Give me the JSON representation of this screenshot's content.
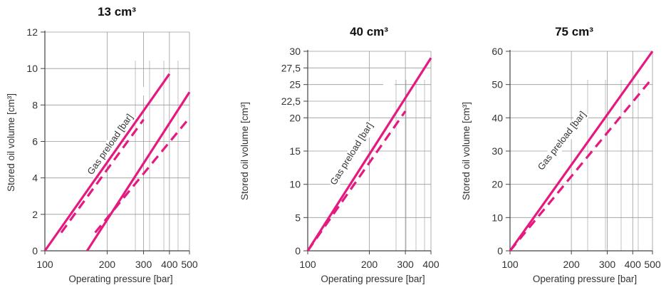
{
  "colors": {
    "series": "#e5197f",
    "grid": "#9a9a9a",
    "axis": "#444444",
    "text": "#333333"
  },
  "chart_data": [
    {
      "type": "line",
      "title": "13 cm³",
      "xlabel": "Operating pressure [bar]",
      "ylabel": "Stored oil volume [cm³]",
      "x_scale": "log",
      "xlim": [
        100,
        500
      ],
      "ylim": [
        0,
        12
      ],
      "x_tick_labels": [
        "100",
        "200",
        "300",
        "400",
        "500"
      ],
      "y_tick_labels": [
        "0",
        "2",
        "4",
        "6",
        "8",
        "10",
        "12"
      ],
      "annotation": "Gas preload [bar]",
      "series": [
        {
          "style": "solid",
          "x": [
            100,
            400
          ],
          "y": [
            0,
            9.7
          ]
        },
        {
          "style": "dashed",
          "x": [
            120,
            300
          ],
          "y": [
            1.0,
            7.2
          ]
        },
        {
          "style": "solid",
          "x": [
            160,
            500
          ],
          "y": [
            0,
            8.7
          ]
        },
        {
          "style": "dashed",
          "x": [
            175,
            500
          ],
          "y": [
            1.0,
            7.3
          ]
        }
      ]
    },
    {
      "type": "line",
      "title": "40 cm³",
      "xlabel": "Operating pressure [bar]",
      "ylabel": "Stored oil volume [cm³]",
      "x_scale": "log",
      "xlim": [
        100,
        400
      ],
      "ylim": [
        0,
        30
      ],
      "x_tick_labels": [
        "100",
        "200",
        "300",
        "400"
      ],
      "y_tick_labels": [
        "0",
        "5",
        "10",
        "15",
        "20",
        "22,5",
        "25",
        "27,5",
        "30"
      ],
      "annotation": "Gas preload [bar]",
      "series": [
        {
          "style": "solid",
          "x": [
            100,
            400
          ],
          "y": [
            0,
            29
          ]
        },
        {
          "style": "dashed",
          "x": [
            100,
            300
          ],
          "y": [
            0,
            21
          ]
        }
      ]
    },
    {
      "type": "line",
      "title": "75 cm³",
      "xlabel": "Operating pressure [bar]",
      "ylabel": "Stored oil volume [cm³]",
      "x_scale": "log",
      "xlim": [
        100,
        500
      ],
      "ylim": [
        0,
        60
      ],
      "x_tick_labels": [
        "100",
        "200",
        "300",
        "400",
        "500"
      ],
      "y_tick_labels": [
        "0",
        "10",
        "20",
        "30",
        "40",
        "50",
        "60"
      ],
      "annotation": "Gas preload [bar]",
      "series": [
        {
          "style": "solid",
          "x": [
            100,
            500
          ],
          "y": [
            0,
            60
          ]
        },
        {
          "style": "dashed",
          "x": [
            100,
            500
          ],
          "y": [
            0,
            52
          ]
        }
      ]
    }
  ]
}
